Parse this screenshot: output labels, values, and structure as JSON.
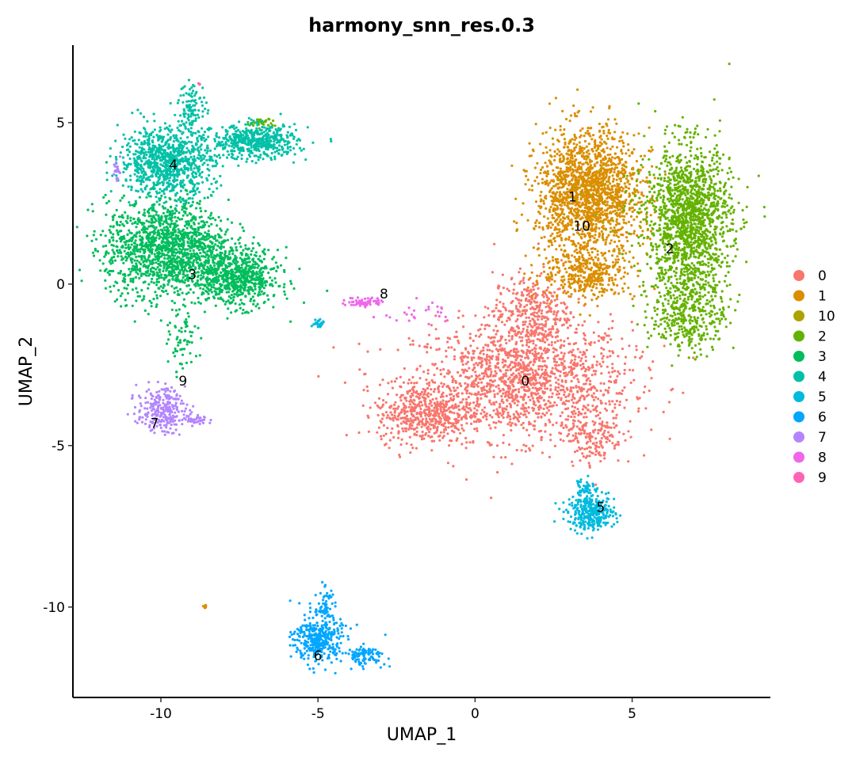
{
  "chart_data": {
    "type": "scatter",
    "title": "harmony_snn_res.0.3",
    "xlabel": "UMAP_1",
    "ylabel": "UMAP_2",
    "xlim": [
      -12.8,
      9.4
    ],
    "ylim": [
      -12.8,
      7.4
    ],
    "x_ticks": [
      -10,
      -5,
      0,
      5
    ],
    "y_ticks": [
      5,
      0,
      -5,
      -10
    ],
    "grid": false,
    "legend_position": "right",
    "legend": [
      {
        "label": "0",
        "color": "#F8766D"
      },
      {
        "label": "1",
        "color": "#DB8E00"
      },
      {
        "label": "10",
        "color": "#AEA200"
      },
      {
        "label": "2",
        "color": "#64B200"
      },
      {
        "label": "3",
        "color": "#00BD5C"
      },
      {
        "label": "4",
        "color": "#00C1A7"
      },
      {
        "label": "5",
        "color": "#00BADE"
      },
      {
        "label": "6",
        "color": "#00A6FF"
      },
      {
        "label": "7",
        "color": "#B385FF"
      },
      {
        "label": "8",
        "color": "#EF67EB"
      },
      {
        "label": "9",
        "color": "#FF63B6"
      }
    ],
    "cluster_labels": [
      {
        "label": "0",
        "x": 1.6,
        "y": -3.0
      },
      {
        "label": "1",
        "x": 3.1,
        "y": 2.7
      },
      {
        "label": "10",
        "x": 3.4,
        "y": 1.8
      },
      {
        "label": "2",
        "x": 6.2,
        "y": 1.1
      },
      {
        "label": "3",
        "x": -9.0,
        "y": 0.3
      },
      {
        "label": "4",
        "x": -9.6,
        "y": 3.7
      },
      {
        "label": "5",
        "x": 4.0,
        "y": -6.9
      },
      {
        "label": "6",
        "x": -5.0,
        "y": -11.5
      },
      {
        "label": "7",
        "x": -10.2,
        "y": -4.3
      },
      {
        "label": "8",
        "x": -2.9,
        "y": -0.3
      },
      {
        "label": "9",
        "x": -9.3,
        "y": -3.0
      }
    ],
    "series": [
      {
        "name": "0",
        "color": "#F8766D",
        "blobs": [
          {
            "cx": 1.5,
            "cy": -3.0,
            "sx": 2.3,
            "sy": 1.2,
            "n": 1500
          },
          {
            "cx": -1.6,
            "cy": -4.0,
            "sx": 1.0,
            "sy": 0.6,
            "n": 500
          },
          {
            "cx": 1.8,
            "cy": -0.9,
            "sx": 0.8,
            "sy": 0.8,
            "n": 350
          },
          {
            "cx": 3.8,
            "cy": -4.6,
            "sx": 0.6,
            "sy": 0.7,
            "n": 180
          }
        ]
      },
      {
        "name": "1",
        "color": "#DB8E00",
        "blobs": [
          {
            "cx": 3.6,
            "cy": 2.8,
            "sx": 1.1,
            "sy": 1.3,
            "n": 1700
          },
          {
            "cx": 3.6,
            "cy": 0.3,
            "sx": 1.0,
            "sy": 0.5,
            "n": 350
          },
          {
            "cx": -8.6,
            "cy": -10.0,
            "sx": 0.05,
            "sy": 0.05,
            "n": 8
          }
        ]
      },
      {
        "name": "10",
        "color": "#AEA200",
        "blobs": [
          {
            "cx": 4.5,
            "cy": 2.5,
            "sx": 0.8,
            "sy": 1.1,
            "n": 40
          }
        ]
      },
      {
        "name": "2",
        "color": "#64B200",
        "blobs": [
          {
            "cx": 6.8,
            "cy": 2.0,
            "sx": 0.9,
            "sy": 1.5,
            "n": 1500
          },
          {
            "cx": 6.8,
            "cy": -0.8,
            "sx": 0.8,
            "sy": 0.9,
            "n": 400
          },
          {
            "cx": -6.8,
            "cy": 5.0,
            "sx": 0.3,
            "sy": 0.1,
            "n": 30
          }
        ]
      },
      {
        "name": "3",
        "color": "#00BD5C",
        "blobs": [
          {
            "cx": -9.8,
            "cy": 1.1,
            "sx": 1.3,
            "sy": 1.0,
            "n": 1500
          },
          {
            "cx": -7.6,
            "cy": 0.2,
            "sx": 0.9,
            "sy": 0.6,
            "n": 700
          },
          {
            "cx": -9.3,
            "cy": -1.9,
            "sx": 0.3,
            "sy": 0.6,
            "n": 60
          }
        ]
      },
      {
        "name": "4",
        "color": "#00C1A7",
        "blobs": [
          {
            "cx": -9.8,
            "cy": 3.8,
            "sx": 1.0,
            "sy": 0.7,
            "n": 900
          },
          {
            "cx": -7.0,
            "cy": 4.4,
            "sx": 0.9,
            "sy": 0.35,
            "n": 500
          },
          {
            "cx": -9.0,
            "cy": 5.5,
            "sx": 0.3,
            "sy": 0.5,
            "n": 100
          }
        ]
      },
      {
        "name": "5",
        "color": "#00BADE",
        "blobs": [
          {
            "cx": 3.7,
            "cy": -7.1,
            "sx": 0.5,
            "sy": 0.35,
            "n": 320
          },
          {
            "cx": 3.5,
            "cy": -6.3,
            "sx": 0.2,
            "sy": 0.3,
            "n": 50
          },
          {
            "cx": -5.0,
            "cy": -1.2,
            "sx": 0.15,
            "sy": 0.1,
            "n": 25
          }
        ]
      },
      {
        "name": "6",
        "color": "#00A6FF",
        "blobs": [
          {
            "cx": -5.0,
            "cy": -11.0,
            "sx": 0.5,
            "sy": 0.5,
            "n": 350
          },
          {
            "cx": -4.8,
            "cy": -10.0,
            "sx": 0.2,
            "sy": 0.4,
            "n": 60
          },
          {
            "cx": -3.5,
            "cy": -11.5,
            "sx": 0.45,
            "sy": 0.2,
            "n": 100
          }
        ]
      },
      {
        "name": "7",
        "color": "#B385FF",
        "blobs": [
          {
            "cx": -10.0,
            "cy": -3.9,
            "sx": 0.5,
            "sy": 0.45,
            "n": 260
          },
          {
            "cx": -8.8,
            "cy": -4.2,
            "sx": 0.3,
            "sy": 0.1,
            "n": 40
          },
          {
            "cx": -11.4,
            "cy": 3.5,
            "sx": 0.07,
            "sy": 0.25,
            "n": 20
          }
        ]
      },
      {
        "name": "8",
        "color": "#EF67EB",
        "blobs": [
          {
            "cx": -3.5,
            "cy": -0.55,
            "sx": 0.4,
            "sy": 0.1,
            "n": 60
          },
          {
            "cx": -1.8,
            "cy": -0.9,
            "sx": 0.7,
            "sy": 0.25,
            "n": 25
          }
        ]
      },
      {
        "name": "9",
        "color": "#FF63B6",
        "blobs": [
          {
            "cx": -8.8,
            "cy": 6.2,
            "sx": 0.03,
            "sy": 0.03,
            "n": 3
          }
        ]
      }
    ]
  }
}
